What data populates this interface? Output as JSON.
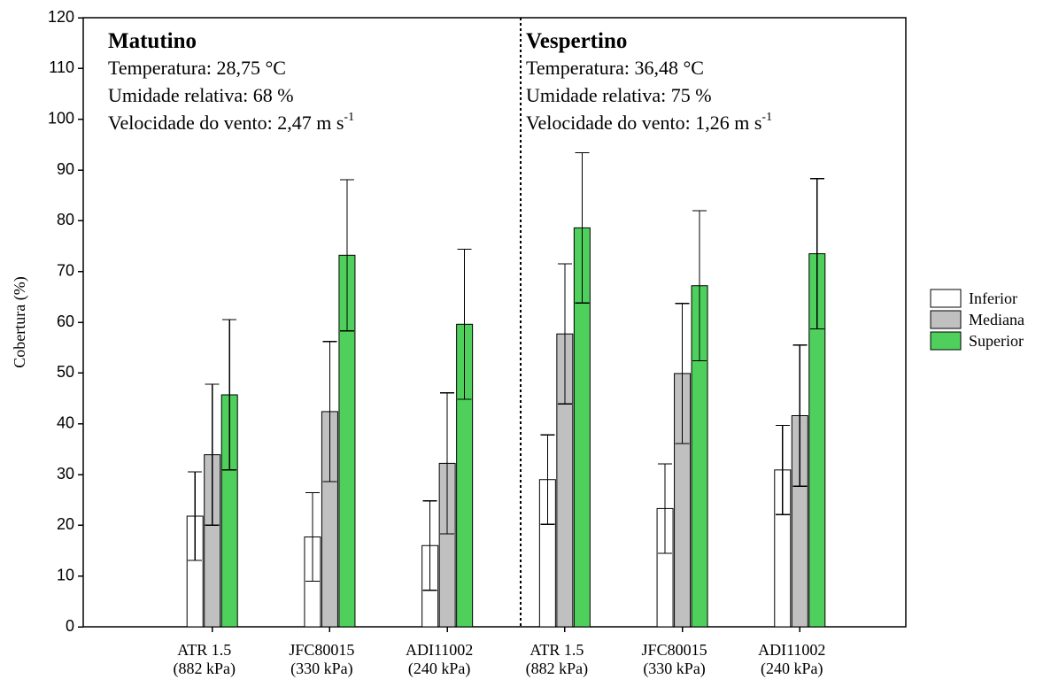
{
  "chart_data": {
    "type": "bar",
    "y_label": "Cobertura (%)",
    "categories": [
      [
        "ATR 1.5",
        "(882 kPa)"
      ],
      [
        "JFC80015",
        "(330 kPa)"
      ],
      [
        "ADI11002",
        "(240 kPa)"
      ],
      [
        "ATR 1.5",
        "(882 kPa)"
      ],
      [
        "JFC80015",
        "(330 kPa)"
      ],
      [
        "ADI11002",
        "(240 kPa)"
      ]
    ],
    "series": [
      {
        "name": "Inferior",
        "color": "#ffffff",
        "values": [
          21.8,
          17.7,
          16.0,
          29.0,
          23.3,
          30.9
        ],
        "errors": [
          8.7,
          8.7,
          8.8,
          8.8,
          8.8,
          8.8
        ]
      },
      {
        "name": "Mediana",
        "color": "#c0c0c0",
        "values": [
          33.9,
          42.4,
          32.2,
          57.7,
          49.9,
          41.6
        ],
        "errors": [
          13.9,
          13.8,
          13.9,
          13.8,
          13.8,
          13.9
        ]
      },
      {
        "name": "Superior",
        "color": "#4fd05c",
        "values": [
          45.7,
          73.2,
          59.6,
          78.6,
          67.2,
          73.5
        ],
        "errors": [
          14.8,
          14.9,
          14.8,
          14.8,
          14.8,
          14.8
        ]
      }
    ],
    "ylim": [
      0,
      120
    ],
    "yticks": [
      0,
      10,
      20,
      30,
      40,
      50,
      60,
      70,
      80,
      90,
      100,
      110,
      120
    ],
    "annotations": [
      {
        "title": "Matutino",
        "lines": [
          "Temperatura: 28,75 °C",
          "Umidade relativa: 68 %",
          "Velocidade do vento: 2,47 m s"
        ],
        "sup": "-1"
      },
      {
        "title": "Vespertino",
        "lines": [
          "Temperatura: 36,48 °C",
          "Umidade relativa: 75  %",
          "Velocidade do vento: 1,26 m s"
        ],
        "sup": "-1"
      }
    ],
    "legend": "right"
  }
}
